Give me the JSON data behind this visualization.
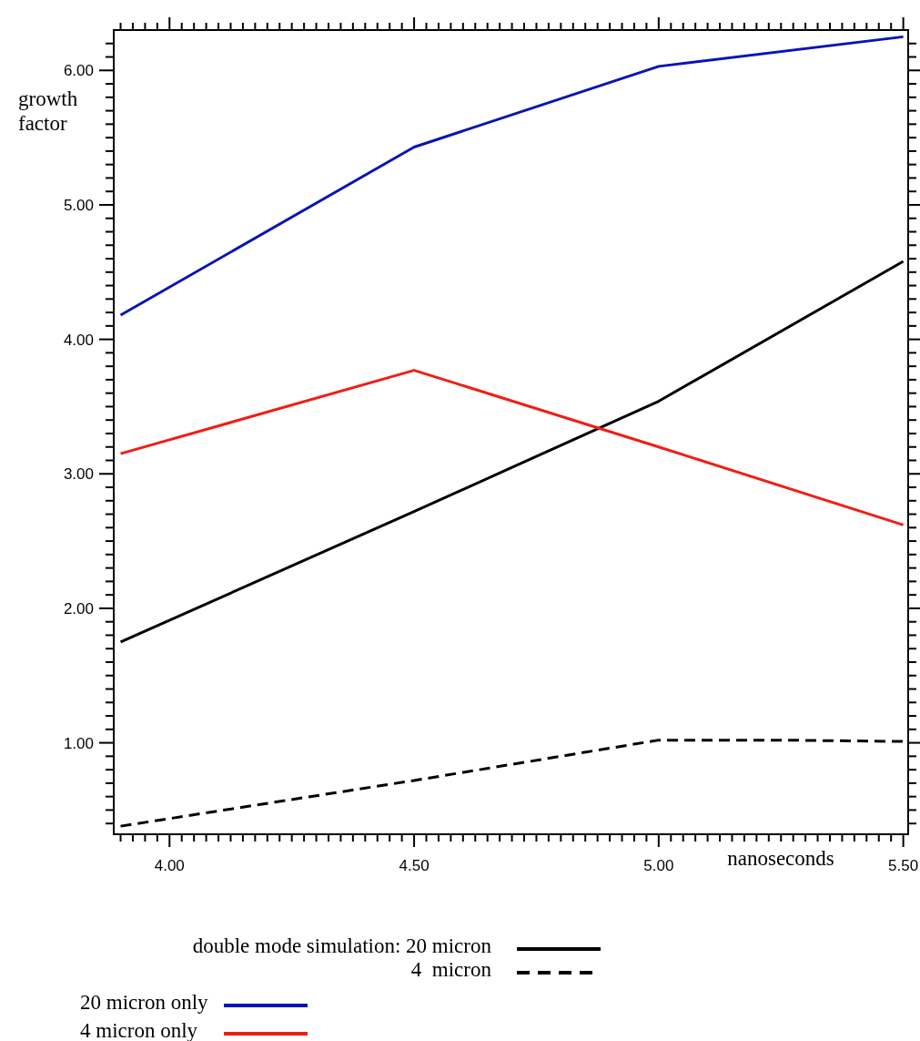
{
  "chart_data": {
    "type": "line",
    "xlabel": "nanoseconds",
    "ylabel": "growth factor",
    "xlim": [
      3.886,
      5.51
    ],
    "ylim": [
      0.32,
      6.3
    ],
    "xticks": [
      {
        "value": 3.9,
        "label": null
      },
      {
        "value": 3.925,
        "label": null
      },
      {
        "value": 3.95,
        "label": null
      },
      {
        "value": 3.975,
        "label": null
      },
      {
        "value": 4,
        "label": "4.00"
      },
      {
        "value": 4.025,
        "label": null
      },
      {
        "value": 4.05,
        "label": null
      },
      {
        "value": 4.075,
        "label": null
      },
      {
        "value": 4.1,
        "label": null
      },
      {
        "value": 4.125,
        "label": null
      },
      {
        "value": 4.15,
        "label": null
      },
      {
        "value": 4.175,
        "label": null
      },
      {
        "value": 4.2,
        "label": null
      },
      {
        "value": 4.225,
        "label": null
      },
      {
        "value": 4.25,
        "label": null
      },
      {
        "value": 4.275,
        "label": null
      },
      {
        "value": 4.3,
        "label": null
      },
      {
        "value": 4.325,
        "label": null
      },
      {
        "value": 4.35,
        "label": null
      },
      {
        "value": 4.375,
        "label": null
      },
      {
        "value": 4.4,
        "label": null
      },
      {
        "value": 4.425,
        "label": null
      },
      {
        "value": 4.45,
        "label": null
      },
      {
        "value": 4.475,
        "label": null
      },
      {
        "value": 4.5,
        "label": "4.50"
      },
      {
        "value": 4.525,
        "label": null
      },
      {
        "value": 4.55,
        "label": null
      },
      {
        "value": 4.575,
        "label": null
      },
      {
        "value": 4.6,
        "label": null
      },
      {
        "value": 4.625,
        "label": null
      },
      {
        "value": 4.65,
        "label": null
      },
      {
        "value": 4.675,
        "label": null
      },
      {
        "value": 4.7,
        "label": null
      },
      {
        "value": 4.725,
        "label": null
      },
      {
        "value": 4.75,
        "label": null
      },
      {
        "value": 4.775,
        "label": null
      },
      {
        "value": 4.8,
        "label": null
      },
      {
        "value": 4.825,
        "label": null
      },
      {
        "value": 4.85,
        "label": null
      },
      {
        "value": 4.875,
        "label": null
      },
      {
        "value": 4.9,
        "label": null
      },
      {
        "value": 4.925,
        "label": null
      },
      {
        "value": 4.95,
        "label": null
      },
      {
        "value": 4.975,
        "label": null
      },
      {
        "value": 5,
        "label": "5.00"
      },
      {
        "value": 5.025,
        "label": null
      },
      {
        "value": 5.05,
        "label": null
      },
      {
        "value": 5.075,
        "label": null
      },
      {
        "value": 5.1,
        "label": null
      },
      {
        "value": 5.125,
        "label": null
      },
      {
        "value": 5.15,
        "label": null
      },
      {
        "value": 5.175,
        "label": null
      },
      {
        "value": 5.2,
        "label": null
      },
      {
        "value": 5.225,
        "label": null
      },
      {
        "value": 5.25,
        "label": null
      },
      {
        "value": 5.275,
        "label": null
      },
      {
        "value": 5.3,
        "label": null
      },
      {
        "value": 5.325,
        "label": null
      },
      {
        "value": 5.35,
        "label": null
      },
      {
        "value": 5.375,
        "label": null
      },
      {
        "value": 5.4,
        "label": null
      },
      {
        "value": 5.425,
        "label": null
      },
      {
        "value": 5.45,
        "label": null
      },
      {
        "value": 5.475,
        "label": null
      },
      {
        "value": 5.5,
        "label": "5.50"
      }
    ],
    "yticks": [
      {
        "value": 0.4,
        "label": null
      },
      {
        "value": 0.5,
        "label": null
      },
      {
        "value": 0.6,
        "label": null
      },
      {
        "value": 0.7,
        "label": null
      },
      {
        "value": 0.8,
        "label": null
      },
      {
        "value": 0.9,
        "label": null
      },
      {
        "value": 1,
        "label": "1.00"
      },
      {
        "value": 1.1,
        "label": null
      },
      {
        "value": 1.2,
        "label": null
      },
      {
        "value": 1.3,
        "label": null
      },
      {
        "value": 1.4,
        "label": null
      },
      {
        "value": 1.5,
        "label": null
      },
      {
        "value": 1.6,
        "label": null
      },
      {
        "value": 1.7,
        "label": null
      },
      {
        "value": 1.8,
        "label": null
      },
      {
        "value": 1.9,
        "label": null
      },
      {
        "value": 2,
        "label": "2.00"
      },
      {
        "value": 2.1,
        "label": null
      },
      {
        "value": 2.2,
        "label": null
      },
      {
        "value": 2.3,
        "label": null
      },
      {
        "value": 2.4,
        "label": null
      },
      {
        "value": 2.5,
        "label": null
      },
      {
        "value": 2.6,
        "label": null
      },
      {
        "value": 2.7,
        "label": null
      },
      {
        "value": 2.8,
        "label": null
      },
      {
        "value": 2.9,
        "label": null
      },
      {
        "value": 3,
        "label": "3.00"
      },
      {
        "value": 3.1,
        "label": null
      },
      {
        "value": 3.2,
        "label": null
      },
      {
        "value": 3.3,
        "label": null
      },
      {
        "value": 3.4,
        "label": null
      },
      {
        "value": 3.5,
        "label": null
      },
      {
        "value": 3.6,
        "label": null
      },
      {
        "value": 3.7,
        "label": null
      },
      {
        "value": 3.8,
        "label": null
      },
      {
        "value": 3.9,
        "label": null
      },
      {
        "value": 4,
        "label": "4.00"
      },
      {
        "value": 4.1,
        "label": null
      },
      {
        "value": 4.2,
        "label": null
      },
      {
        "value": 4.3,
        "label": null
      },
      {
        "value": 4.4,
        "label": null
      },
      {
        "value": 4.5,
        "label": null
      },
      {
        "value": 4.6,
        "label": null
      },
      {
        "value": 4.7,
        "label": null
      },
      {
        "value": 4.8,
        "label": null
      },
      {
        "value": 4.9,
        "label": null
      },
      {
        "value": 5,
        "label": "5.00"
      },
      {
        "value": 5.1,
        "label": null
      },
      {
        "value": 5.2,
        "label": null
      },
      {
        "value": 5.3,
        "label": null
      },
      {
        "value": 5.4,
        "label": null
      },
      {
        "value": 5.5,
        "label": null
      },
      {
        "value": 5.6,
        "label": null
      },
      {
        "value": 5.7,
        "label": null
      },
      {
        "value": 5.8,
        "label": null
      },
      {
        "value": 5.9,
        "label": null
      },
      {
        "value": 6,
        "label": "6.00"
      },
      {
        "value": 6.1,
        "label": null
      },
      {
        "value": 6.2,
        "label": null
      }
    ],
    "grid": false,
    "legend": "bottom",
    "series": [
      {
        "name": "double mode simulation: 20 micron",
        "color": "#000000",
        "line_style": "solid",
        "x": [
          3.9,
          4.5,
          5.0,
          5.5
        ],
        "values": [
          1.75,
          2.72,
          3.54,
          4.58
        ]
      },
      {
        "name": "4  micron",
        "color": "#000000",
        "line_style": "dashed",
        "x": [
          3.9,
          4.5,
          5.0,
          5.25,
          5.5
        ],
        "values": [
          0.38,
          0.72,
          1.02,
          1.02,
          1.01
        ]
      },
      {
        "name": "20 micron only",
        "color": "#0a14b4",
        "line_style": "solid",
        "x": [
          3.9,
          4.5,
          5.0,
          5.5
        ],
        "values": [
          4.18,
          5.43,
          6.03,
          6.25
        ]
      },
      {
        "name": "4 micron only",
        "color": "#f01e14",
        "line_style": "solid",
        "x": [
          3.9,
          4.5,
          5.0,
          5.5
        ],
        "values": [
          3.15,
          3.77,
          3.2,
          2.62
        ]
      }
    ]
  }
}
